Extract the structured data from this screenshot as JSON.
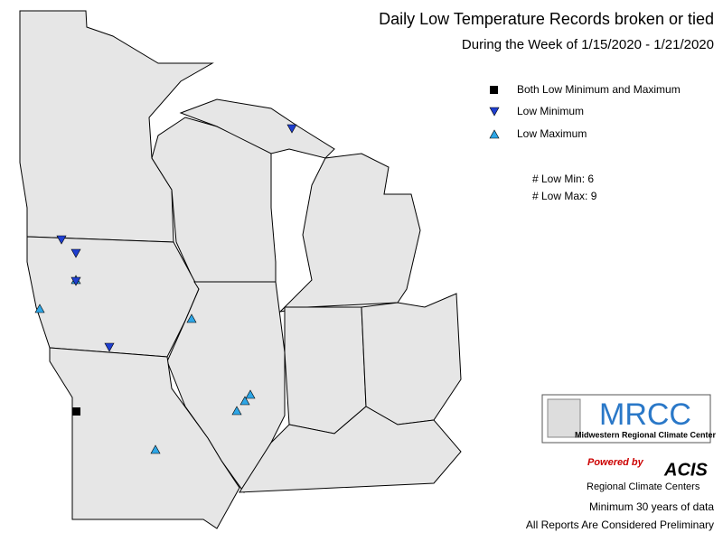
{
  "header": {
    "title": "Daily Low Temperature Records broken or tied",
    "subtitle": "During the Week of 1/15/2020 - 1/21/2020"
  },
  "legend": {
    "items": [
      "Both Low Minimum and Maximum",
      "Low Minimum",
      "Low Maximum"
    ]
  },
  "counts": [
    "# Low Min: 6",
    "# Low Max: 9"
  ],
  "logos": {
    "mrcc": "MRCC",
    "mrcc_name": "Midwestern Regional Climate Center",
    "powered": "Powered by",
    "acis": "ACIS",
    "acis_name": "Regional Climate Centers"
  },
  "footer": [
    "Minimum 30 years of data",
    "All Reports Are Considered Preliminary"
  ]
}
